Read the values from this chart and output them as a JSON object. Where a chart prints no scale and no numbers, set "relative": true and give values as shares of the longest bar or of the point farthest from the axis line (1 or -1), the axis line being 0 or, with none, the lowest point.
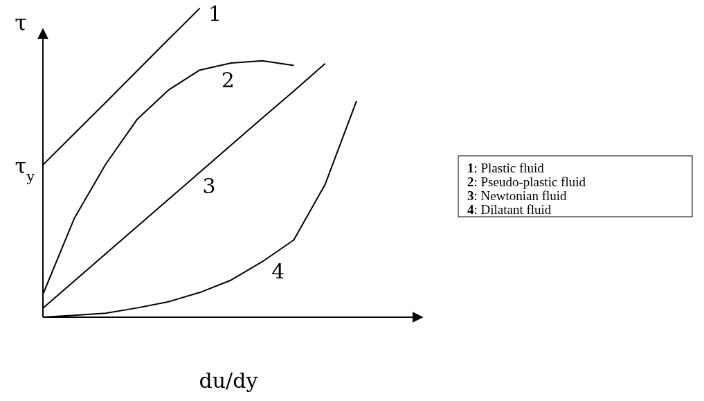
{
  "chart_data": {
    "type": "line",
    "relative": true,
    "ylabel": "τ",
    "xlabel": "du/dy",
    "categories": [
      null,
      null,
      null,
      null,
      null,
      null,
      null,
      null,
      null,
      null,
      null
    ],
    "series": [
      {
        "name": "1",
        "color": "#000000",
        "values": [
          0.493,
          0.594,
          0.695,
          0.797,
          0.899,
          1.0,
          null,
          null,
          null,
          null,
          null
        ]
      },
      {
        "name": "2",
        "color": "#000000",
        "values": [
          0.074,
          0.32,
          0.495,
          0.64,
          0.735,
          0.8,
          0.823,
          0.83,
          0.815,
          null,
          null
        ]
      },
      {
        "name": "3",
        "color": "#000000",
        "values": [
          0.029,
          0.117,
          0.205,
          0.293,
          0.381,
          0.469,
          0.557,
          0.645,
          0.732,
          0.821,
          null
        ]
      },
      {
        "name": "4",
        "color": "#000000",
        "values": [
          0,
          0.006,
          0.013,
          0.03,
          0.05,
          0.08,
          0.12,
          0.18,
          0.25,
          0.43,
          0.7
        ]
      }
    ],
    "annotations": [
      "τ$_{y}$",
      "1: Plastic fluid",
      "2: Pseudo-plastic fluid",
      "3: Newtonian fluid",
      "4: Dilatant fluid"
    ]
  }
}
